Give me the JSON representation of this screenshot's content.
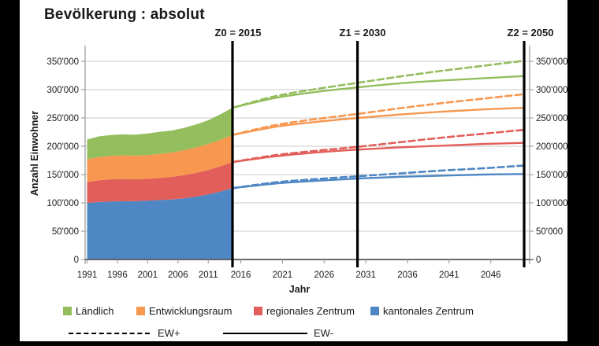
{
  "chart_data": {
    "type": "area+line",
    "title": "Bevölkerung : absolut",
    "xlabel": "Jahr",
    "ylabel": "Anzahl Einwohner",
    "ylim": [
      0,
      370000
    ],
    "grid": true,
    "yticks": [
      {
        "value": 0,
        "label": "0"
      },
      {
        "value": 50000,
        "label": "50'000"
      },
      {
        "value": 100000,
        "label": "100'000"
      },
      {
        "value": 150000,
        "label": "150'000"
      },
      {
        "value": 200000,
        "label": "200'000"
      },
      {
        "value": 250000,
        "label": "250'000"
      },
      {
        "value": 300000,
        "label": "300'000"
      },
      {
        "value": 350000,
        "label": "350'000"
      }
    ],
    "xticks": [
      {
        "value": 1991,
        "label": "1991"
      },
      {
        "value": 1996,
        "label": "1996"
      },
      {
        "value": 2001,
        "label": "2001"
      },
      {
        "value": 2006,
        "label": "2006"
      },
      {
        "value": 2011,
        "label": "2011"
      },
      {
        "value": 2016,
        "label": "2016"
      },
      {
        "value": 2021,
        "label": "2021"
      },
      {
        "value": 2026,
        "label": "2026"
      },
      {
        "value": 2031,
        "label": "2031"
      },
      {
        "value": 2036,
        "label": "2036"
      },
      {
        "value": 2041,
        "label": "2041"
      },
      {
        "value": 2046,
        "label": "2046"
      }
    ],
    "markers": [
      {
        "id": "Z0",
        "label": "Z0 = 2015",
        "year": 2015
      },
      {
        "id": "Z1",
        "label": "Z1 = 2030",
        "year": 2030
      },
      {
        "id": "Z2",
        "label": "Z2 = 2050",
        "year": 2050
      }
    ],
    "regions": [
      {
        "name": "Ländlich",
        "color": "#94BE5D"
      },
      {
        "name": "Entwicklungsraum",
        "color": "#F79750"
      },
      {
        "name": "regionales Zentrum",
        "color": "#E25E5A"
      },
      {
        "name": "kantonales Zentrum",
        "color": "#4E87C4"
      }
    ],
    "historical_stacked_area": {
      "years": [
        1991,
        1993,
        1995,
        1997,
        1999,
        2001,
        2003,
        2005,
        2007,
        2009,
        2011,
        2013,
        2015
      ],
      "stack_bottom_to_top": [
        "kantonales Zentrum",
        "regionales Zentrum",
        "Entwicklungsraum",
        "Ländlich"
      ],
      "values": {
        "kantonales Zentrum": [
          100000,
          101500,
          102500,
          103000,
          103000,
          104000,
          105000,
          106000,
          108000,
          111000,
          115000,
          120000,
          126000
        ],
        "regionales Zentrum": [
          37000,
          38500,
          39000,
          39000,
          38500,
          38500,
          39000,
          40000,
          41000,
          42000,
          43000,
          44500,
          46000
        ],
        "Entwicklungsraum": [
          40000,
          41000,
          41500,
          42000,
          42000,
          42000,
          42500,
          43000,
          44000,
          45000,
          46000,
          47000,
          48000
        ],
        "Ländlich": [
          35000,
          36500,
          37000,
          37000,
          37000,
          38000,
          39000,
          39000,
          39500,
          40500,
          42000,
          45000,
          48000
        ]
      }
    },
    "projection_lines": {
      "years": [
        2015,
        2020,
        2025,
        2030,
        2035,
        2040,
        2045,
        2050
      ],
      "note": "cumulative stack-top values continued as scenario lines",
      "series": [
        {
          "region": "Ländlich",
          "scenario": "EW+",
          "style": "dashed",
          "values": [
            268000,
            288000,
            301000,
            312000,
            323000,
            333000,
            342000,
            351000
          ]
        },
        {
          "region": "Ländlich",
          "scenario": "EW-",
          "style": "solid",
          "values": [
            268000,
            285000,
            296000,
            304000,
            311000,
            316000,
            320000,
            324000
          ]
        },
        {
          "region": "Entwicklungsraum",
          "scenario": "EW+",
          "style": "dashed",
          "values": [
            220000,
            237000,
            248000,
            257000,
            267000,
            276000,
            284000,
            292000
          ]
        },
        {
          "region": "Entwicklungsraum",
          "scenario": "EW-",
          "style": "solid",
          "values": [
            220000,
            234000,
            243000,
            250000,
            256000,
            261000,
            265000,
            268000
          ]
        },
        {
          "region": "regionales Zentrum",
          "scenario": "EW+",
          "style": "dashed",
          "values": [
            172000,
            184000,
            192000,
            199000,
            207000,
            215000,
            222000,
            229000
          ]
        },
        {
          "region": "regionales Zentrum",
          "scenario": "EW-",
          "style": "solid",
          "values": [
            172000,
            182000,
            189000,
            194000,
            198000,
            201000,
            204000,
            206000
          ]
        },
        {
          "region": "kantonales Zentrum",
          "scenario": "EW+",
          "style": "dashed",
          "values": [
            126000,
            136000,
            142000,
            147000,
            152000,
            157000,
            161000,
            166000
          ]
        },
        {
          "region": "kantonales Zentrum",
          "scenario": "EW-",
          "style": "solid",
          "values": [
            126000,
            134000,
            139000,
            143000,
            146000,
            148000,
            150000,
            151000
          ]
        }
      ]
    },
    "scenarios": [
      {
        "label": "EW+",
        "style": "dashed"
      },
      {
        "label": "EW-",
        "style": "solid"
      }
    ],
    "colors": {
      "marker_line": "#000000",
      "gridline": "#C9C9C9",
      "axis": "#A0A0A0",
      "baseline": "#555555",
      "background": "#FFFFFF",
      "letterbox": "#000000"
    }
  }
}
